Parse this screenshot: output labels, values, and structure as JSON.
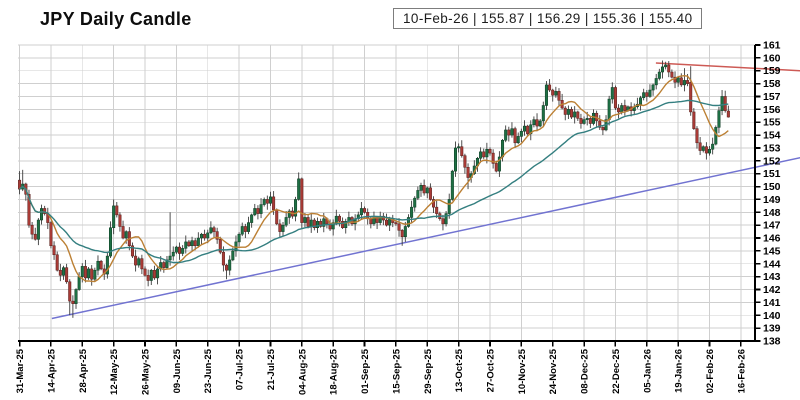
{
  "title": "JPY Daily Candle",
  "info_box": {
    "text": "10-Feb-26 | 155.87 | 156.29 | 155.36 | 155.40",
    "date": "10-Feb-26",
    "open": "155.87",
    "high": "156.29",
    "low": "155.36",
    "close": "155.40"
  },
  "chart_data": {
    "type": "candlestick",
    "title": "JPY Daily Candle",
    "interval": "daily",
    "x_tick_labels": [
      "31-Mar-25",
      "14-Apr-25",
      "28-Apr-25",
      "12-May-25",
      "26-May-25",
      "09-Jun-25",
      "23-Jun-25",
      "07-Jul-25",
      "21-Jul-25",
      "04-Aug-25",
      "18-Aug-25",
      "01-Sep-25",
      "15-Sep-25",
      "29-Sep-25",
      "13-Oct-25",
      "27-Oct-25",
      "10-Nov-25",
      "24-Nov-25",
      "08-Dec-25",
      "22-Dec-25",
      "05-Jan-26",
      "19-Jan-26",
      "02-Feb-26",
      "16-Feb-26"
    ],
    "x_tick_every": 10,
    "y_ticks": [
      138,
      139,
      140,
      141,
      142,
      143,
      144,
      145,
      146,
      147,
      148,
      149,
      150,
      151,
      152,
      153,
      154,
      155,
      156,
      157,
      158,
      159,
      160,
      161
    ],
    "y_range": [
      138,
      161
    ],
    "x_slots": 235,
    "grid": true,
    "legend": "none",
    "first_open": 150.5,
    "closes": [
      149.8,
      150.2,
      149.4,
      147.0,
      146.3,
      145.9,
      147.4,
      148.3,
      147.9,
      147.2,
      145.4,
      144.7,
      143.5,
      143.1,
      143.7,
      142.6,
      141.1,
      140.9,
      142.0,
      143.0,
      143.8,
      142.9,
      143.6,
      142.8,
      143.5,
      144.2,
      143.6,
      143.2,
      144.6,
      146.8,
      148.5,
      147.8,
      146.9,
      146.0,
      146.5,
      145.4,
      144.6,
      143.9,
      144.4,
      143.6,
      143.1,
      142.7,
      143.5,
      142.9,
      143.6,
      144.1,
      143.7,
      144.3,
      144.6,
      144.9,
      145.3,
      144.8,
      145.2,
      145.7,
      145.4,
      145.8,
      145.4,
      146.0,
      146.3,
      146.0,
      146.4,
      146.8,
      146.5,
      145.9,
      144.9,
      143.9,
      143.5,
      144.3,
      145.0,
      145.7,
      146.3,
      146.9,
      146.5,
      147.2,
      147.8,
      148.3,
      147.9,
      148.6,
      149.0,
      148.7,
      149.2,
      148.2,
      147.1,
      146.5,
      147.0,
      147.6,
      148.1,
      147.7,
      149.0,
      150.6,
      147.2,
      147.6,
      146.9,
      147.4,
      146.8,
      147.3,
      146.9,
      147.5,
      147.1,
      146.7,
      147.2,
      147.7,
      147.3,
      146.8,
      147.3,
      147.6,
      147.1,
      147.5,
      147.8,
      148.3,
      148.0,
      147.5,
      147.1,
      147.6,
      147.2,
      147.7,
      147.4,
      147.0,
      147.5,
      147.2,
      147.1,
      146.6,
      146.1,
      146.9,
      147.6,
      148.4,
      149.1,
      149.7,
      150.1,
      149.5,
      149.9,
      149.0,
      148.4,
      147.9,
      147.5,
      147.1,
      147.9,
      149.0,
      151.2,
      153.0,
      153.1,
      152.4,
      151.5,
      150.7,
      151.0,
      151.6,
      152.2,
      152.7,
      152.3,
      152.9,
      152.6,
      151.8,
      151.2,
      152.3,
      153.6,
      154.4,
      154.0,
      154.5,
      153.4,
      153.9,
      154.3,
      154.7,
      154.1,
      154.8,
      155.2,
      154.7,
      155.1,
      156.3,
      157.9,
      157.5,
      157.1,
      157.4,
      156.7,
      156.1,
      155.6,
      156.0,
      155.4,
      155.8,
      155.3,
      154.9,
      155.2,
      155.3,
      154.9,
      155.7,
      155.1,
      154.6,
      154.4,
      155.2,
      156.8,
      157.7,
      156.1,
      155.8,
      156.3,
      155.9,
      156.2,
      155.9,
      156.2,
      156.4,
      156.9,
      157.3,
      157.0,
      157.5,
      157.9,
      158.4,
      158.9,
      159.3,
      159.45,
      158.9,
      158.5,
      158.1,
      158.45,
      157.9,
      158.25,
      158.0,
      155.8,
      154.5,
      153.4,
      152.8,
      153.1,
      152.6,
      152.9,
      153.3,
      154.6,
      155.9,
      157.0,
      155.9,
      155.4
    ],
    "wick_up_pattern": [
      0.2,
      0.45,
      0.1,
      0.35,
      0.25,
      0.5,
      0.15,
      0.3
    ],
    "wick_down_pattern": [
      0.35,
      0.15,
      0.5,
      0.2,
      0.4,
      0.1,
      0.45
    ],
    "overrides": {
      "0": {
        "o": 150.5,
        "h": 151.2,
        "l": 149.4
      },
      "1": {
        "h": 151.3
      },
      "16": {
        "l": 140.0
      },
      "17": {
        "l": 139.8
      },
      "30": {
        "h": 149.0
      },
      "48": {
        "h": 148.0
      },
      "66": {
        "l": 142.8
      },
      "80": {
        "h": 149.6
      },
      "89": {
        "h": 151.1
      },
      "122": {
        "l": 145.4
      },
      "139": {
        "h": 153.5
      },
      "143": {
        "l": 149.8
      },
      "168": {
        "h": 158.2
      },
      "189": {
        "h": 158.1
      },
      "206": {
        "h": 159.7
      },
      "212": {
        "h": 159.2
      },
      "214": {
        "o": 158.1,
        "h": 159.35,
        "l": 155.5
      },
      "224": {
        "h": 157.5
      },
      "226": {
        "o": 155.87,
        "h": 156.29,
        "l": 155.36,
        "c": 155.4
      }
    },
    "moving_averages": [
      {
        "name": "sma-fast",
        "period": 10,
        "color": "#bc8034"
      },
      {
        "name": "sma-slow",
        "period": 40,
        "color": "#347f80"
      }
    ],
    "trendlines": [
      {
        "name": "support",
        "color": "#7173d1",
        "i1": 10.3,
        "p1": 139.75,
        "i2": 249,
        "p2": 152.25
      },
      {
        "name": "resistance",
        "color": "#cd5a55",
        "i1": 202.9,
        "p1": 159.6,
        "i2": 249,
        "p2": 159.0
      }
    ],
    "colors": {
      "up_fill": "#1e7044",
      "up_stroke": "#0d3a23",
      "down_fill": "#a93b36",
      "down_stroke": "#571d1a",
      "wick": "#3c3c3c",
      "grid": "#cfcfcf",
      "axis": "#000000",
      "label": "#000000",
      "background": "#ffffff"
    }
  }
}
